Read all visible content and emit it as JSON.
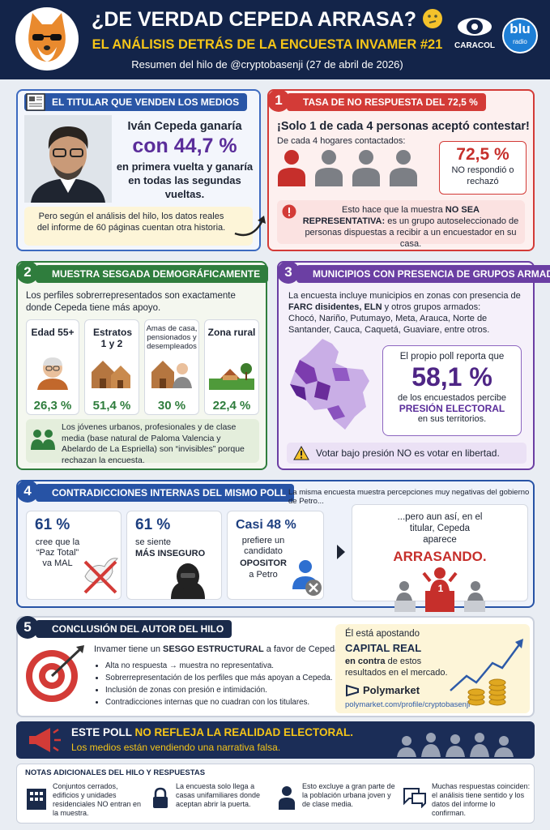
{
  "header": {
    "title": "¿DE VERDAD CEPEDA ARRASA?",
    "subtitle": "EL ANÁLISIS DETRÁS DE LA ENCUESTA INVAMER #21",
    "byline": "Resumen del hilo de @cryptobasenji (27 de abril de 2026)",
    "logos": [
      "CARACOL",
      "blu",
      "radio"
    ]
  },
  "headline_panel": {
    "title": "EL TITULAR QUE VENDEN LOS MEDIOS",
    "lead": "Iván Cepeda ganaría",
    "figure": "con 44,7 %",
    "rest": "en primera vuelta y ganaría en todas las segundas vueltas.",
    "note": "Pero según el análisis del hilo, los datos reales del informe de 60 páginas cuentan otra historia."
  },
  "section1": {
    "number": "1",
    "title": "TASA DE NO RESPUESTA DEL 72,5 %",
    "lead": "¡Solo 1 de cada 4 personas aceptó contestar!",
    "sub": "De cada 4 hogares contactados:",
    "stat": "72,5 %",
    "stat_text": "NO respondió o rechazó",
    "warning": [
      "Esto hace que la muestra ",
      "NO SEA REPRESENTATIVA:",
      " es un grupo autoseleccionado de personas dispuestas a recibir a un encuestador en su casa."
    ]
  },
  "section2": {
    "number": "2",
    "title": "MUESTRA SESGADA DEMOGRÁFICAMENTE",
    "intro": "Los perfiles sobrerrepresentados son exactamente donde Cepeda tiene más apoyo.",
    "cards": [
      {
        "label": "Edad 55+",
        "value": "26,3 %"
      },
      {
        "label": "Estratos 1 y 2",
        "value": "51,4 %"
      },
      {
        "label": "Amas de casa, pensionados y desempleados",
        "value": "30 %"
      },
      {
        "label": "Zona rural",
        "value": "22,4 %"
      }
    ],
    "note": "Los jóvenes urbanos, profesionales y de clase media (base natural de Paloma Valencia y Abelardo de La Espriella) son “invisibles” porque rechazan la encuesta."
  },
  "section3": {
    "number": "3",
    "title": "MUNICIPIOS CON PRESENCIA DE GRUPOS ARMADOS",
    "text": [
      "La encuesta incluye municipios en zonas con presencia de ",
      "FARC disidentes, ELN",
      " y otros grupos armados:"
    ],
    "places": "Chocó, Nariño, Putumayo, Meta, Arauca, Norte de Santander, Cauca, Caquetá, Guaviare, entre otros.",
    "stat_lead": "El propio poll reporta que",
    "stat": "58,1 %",
    "stat_text": "de los encuestados percibe",
    "stat_bold": "PRESIÓN ELECTORAL",
    "stat_end": "en sus territorios.",
    "warning": "Votar bajo presión NO es votar en libertad."
  },
  "section4": {
    "number": "4",
    "title": "CONTRADICCIONES INTERNAS DEL MISMO POLL",
    "aside": "La misma encuesta muestra percepciones muy negativas del gobierno de Petro...",
    "cards": [
      {
        "value": "61 %",
        "text": "cree que la “Paz Total” va MAL"
      },
      {
        "value": "61 %",
        "text": "se siente",
        "bold": "MÁS INSEGURO"
      },
      {
        "value": "Casi 48 %",
        "text": "prefiere un candidato",
        "bold": "OPOSITOR",
        "end": "a Petro"
      }
    ],
    "final": "...pero aun así, en el titular, Cepeda aparece",
    "final_bold": "ARRASANDO.",
    "podium": "1"
  },
  "section5": {
    "number": "5",
    "title": "CONCLUSIÓN DEL AUTOR DEL HILO",
    "lead": [
      "Invamer tiene un ",
      "SESGO ESTRUCTURAL",
      " a favor de Cepeda."
    ],
    "bullets": [
      "Alta no respuesta → muestra no representativa.",
      "Sobrerrepresentación de los perfiles que más apoyan a Cepeda.",
      "Inclusión de zonas con presión e intimidación.",
      "Contradicciones internas que no cuadran con los titulares."
    ],
    "bet": [
      "Él está apostando",
      "CAPITAL REAL",
      "en contra",
      " de estos resultados en el mercado."
    ],
    "brand": "Polymarket",
    "url": "polymarket.com/profile/cryptobasenji"
  },
  "banner": {
    "line1": [
      "ESTE POLL ",
      "NO REFLEJA LA REALIDAD ELECTORAL."
    ],
    "line2": "Los medios están vendiendo una narrativa falsa."
  },
  "notes": {
    "title": "NOTAS ADICIONALES DEL HILO Y RESPUESTAS",
    "items": [
      "Conjuntos cerrados, edificios y unidades residenciales NO entran en la muestra.",
      "La encuesta solo llega a casas unifamiliares donde aceptan abrir la puerta.",
      "Esto excluye a gran parte de la población urbana joven y de clase media.",
      "Muchas respuestas coinciden: el análisis tiene sentido y los datos del informe lo confirman."
    ]
  }
}
